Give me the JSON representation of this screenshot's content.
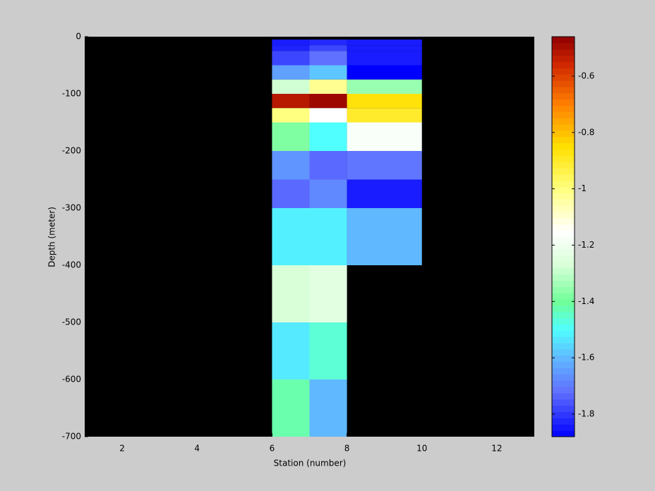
{
  "chart_data": {
    "type": "heatmap",
    "xlabel": "Station (number)",
    "ylabel": "Depth (meter)",
    "xlim": [
      1,
      13
    ],
    "xticks": [
      2,
      4,
      6,
      8,
      10,
      12
    ],
    "ylim": [
      -700,
      0
    ],
    "yticks": [
      0,
      -100,
      -200,
      -300,
      -400,
      -500,
      -600,
      -700
    ],
    "background": "#000000",
    "x_edges": [
      6,
      7,
      8,
      10
    ],
    "y_edges": [
      -5,
      -15,
      -25,
      -50,
      -75,
      -100,
      -125,
      -150,
      -200,
      -250,
      -300,
      -400,
      -500,
      -600,
      -700
    ],
    "values": [
      [
        -1.84,
        -1.82,
        -1.84
      ],
      [
        -1.83,
        -1.78,
        -1.84
      ],
      [
        -1.78,
        -1.72,
        -1.84
      ],
      [
        -1.64,
        -1.58,
        -1.88
      ],
      [
        -1.28,
        -1.02,
        -1.35
      ],
      [
        -0.52,
        -0.48,
        -0.86
      ],
      [
        -1.0,
        -1.15,
        -0.9
      ],
      [
        -1.38,
        -1.5,
        -1.17
      ],
      [
        -1.66,
        -1.73,
        -1.71
      ],
      [
        -1.73,
        -1.68,
        -1.84
      ],
      [
        -1.52,
        -1.52,
        -1.6
      ],
      [
        -1.27,
        -1.24,
        null
      ],
      [
        -1.53,
        -1.46,
        null
      ],
      [
        -1.42,
        -1.6,
        null
      ]
    ],
    "colorbar_lim": [
      -1.88,
      -0.46
    ],
    "colorbar_ticks": [
      -0.6,
      -0.8,
      -1,
      -1.2,
      -1.4,
      -1.6,
      -1.8
    ],
    "colormap": [
      {
        "value": -1.88,
        "color": "#0000ff"
      },
      {
        "value": -1.72,
        "color": "#6070ff"
      },
      {
        "value": -1.6,
        "color": "#60b8ff"
      },
      {
        "value": -1.5,
        "color": "#50ffff"
      },
      {
        "value": -1.4,
        "color": "#70ff98"
      },
      {
        "value": -1.27,
        "color": "#d8ffd8"
      },
      {
        "value": -1.15,
        "color": "#ffffff"
      },
      {
        "value": -1.0,
        "color": "#ffff80"
      },
      {
        "value": -0.85,
        "color": "#ffe000"
      },
      {
        "value": -0.7,
        "color": "#ff8000"
      },
      {
        "value": -0.56,
        "color": "#d02800"
      },
      {
        "value": -0.46,
        "color": "#900000"
      }
    ]
  }
}
